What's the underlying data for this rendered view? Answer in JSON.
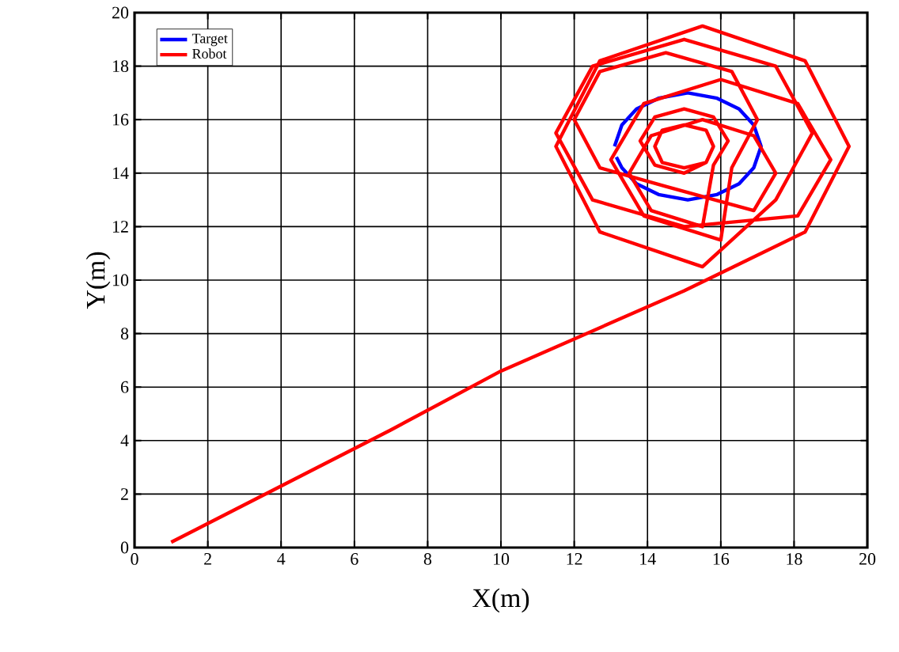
{
  "chart_data": {
    "type": "line",
    "xlabel": "X(m)",
    "ylabel": "Y(m)",
    "xlim": [
      0,
      20
    ],
    "ylim": [
      0,
      20
    ],
    "xticks": [
      0,
      2,
      4,
      6,
      8,
      10,
      12,
      14,
      16,
      18,
      20
    ],
    "yticks": [
      0,
      2,
      4,
      6,
      8,
      10,
      12,
      14,
      16,
      18,
      20
    ],
    "grid": true,
    "legend": "top left",
    "marker": "none",
    "line_style": "solid",
    "series": [
      {
        "name": "Target",
        "color": "#0000ff",
        "x": [
          13.1,
          13.3,
          13.7,
          14.3,
          15.1,
          15.9,
          16.5,
          16.9,
          17.1,
          16.9,
          16.5,
          15.9,
          15.1,
          14.3,
          13.7,
          13.3,
          13.15
        ],
        "values": [
          15,
          15.8,
          16.4,
          16.8,
          17,
          16.8,
          16.4,
          15.8,
          15,
          14.2,
          13.6,
          13.2,
          13,
          13.2,
          13.6,
          14.2,
          14.6
        ]
      },
      {
        "name": "Robot",
        "color": "#ff0000",
        "x": [
          1,
          4,
          7,
          10,
          13,
          15,
          16.5,
          18.3,
          19.5,
          18.3,
          15.5,
          12.7,
          11.5,
          12.7,
          15.5,
          17.5,
          18.5,
          17.5,
          15,
          12.5,
          11.5,
          12.5,
          15,
          18.1,
          19,
          18.1,
          16,
          13.9,
          13,
          13.9,
          16,
          16.3,
          17,
          16.3,
          14.5,
          12.7,
          12,
          12.7,
          14.5,
          16.9,
          17.5,
          16.9,
          15.5,
          14.1,
          13.5,
          14.1,
          15.5,
          15.8,
          16.2,
          15.8,
          15,
          14.2,
          13.8,
          14.2,
          15,
          15.6,
          15.8,
          15.6,
          15,
          14.4,
          14.2,
          14.4,
          15,
          15.6
        ],
        "values": [
          0.2,
          2.3,
          4.4,
          6.6,
          8.4,
          9.6,
          10.6,
          11.8,
          15,
          18.2,
          19.5,
          18.2,
          15,
          11.8,
          10.5,
          13,
          15.5,
          18,
          19,
          18,
          15.5,
          13,
          12,
          12.4,
          14.5,
          16.6,
          17.5,
          16.6,
          14.5,
          12.4,
          11.5,
          14.2,
          16,
          17.8,
          18.5,
          17.8,
          16,
          14.2,
          13.5,
          12.6,
          14,
          15.4,
          16,
          15.4,
          14,
          12.6,
          12,
          14.3,
          15.2,
          16.1,
          16.4,
          16.1,
          15.2,
          14.3,
          14,
          14.4,
          15,
          15.6,
          15.8,
          15.6,
          15,
          14.4,
          14.2,
          14.4
        ]
      }
    ]
  }
}
